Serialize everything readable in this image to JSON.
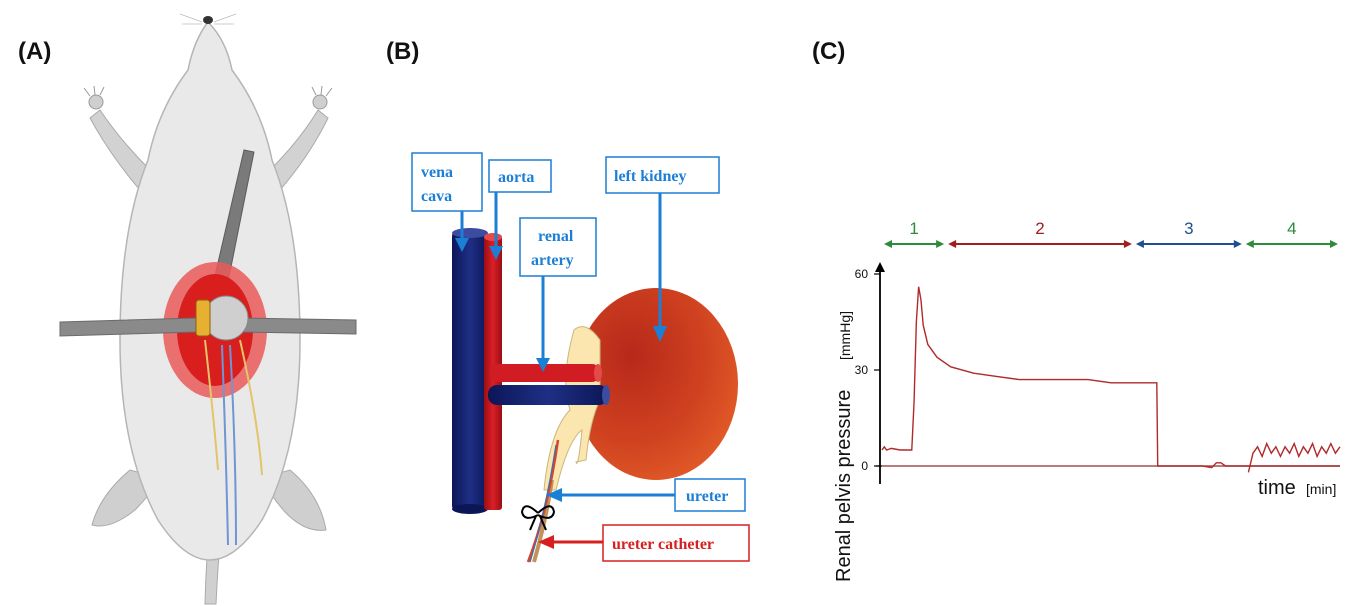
{
  "panels": {
    "a": "(A)",
    "b": "(B)",
    "c": "(C)"
  },
  "diagram_b": {
    "labels": {
      "vena_cava_line1": "vena",
      "vena_cava_line2": "cava",
      "aorta": "aorta",
      "left_kidney": "left kidney",
      "renal_artery_line1": "renal",
      "renal_artery_line2": "artery",
      "ureter": "ureter",
      "ureter_catheter": "ureter catheter"
    },
    "colors": {
      "label_blue": "#1c7fd6",
      "label_red": "#d71f1f",
      "vein": "#12206b",
      "artery": "#c2121a",
      "kidney": "#c53a1a"
    }
  },
  "chart_c": {
    "ylabel": "Renal pelvis pressure",
    "yunit": "[mmHg]",
    "xlabel": "time",
    "xunit": "[min]",
    "yticks": [
      "0",
      "30",
      "60"
    ],
    "phases": [
      {
        "label": "1",
        "color": "#2e8b3a"
      },
      {
        "label": "2",
        "color": "#a01e1e"
      },
      {
        "label": "3",
        "color": "#1f4f91"
      },
      {
        "label": "4",
        "color": "#2e8b3a"
      }
    ]
  },
  "chart_data": {
    "type": "line",
    "title": "",
    "xlabel": "time [min]",
    "ylabel": "Renal pelvis pressure [mmHg]",
    "ylim": [
      0,
      60
    ],
    "yticks": [
      0,
      30,
      60
    ],
    "series": [
      {
        "x": [
          0,
          0.5,
          1,
          2,
          4,
          6.5,
          7,
          7.5,
          8,
          8.5,
          9,
          10,
          12,
          15,
          20,
          25,
          30,
          34,
          36,
          40,
          45,
          50,
          55,
          59,
          60,
          60.2,
          61,
          65,
          70,
          72,
          73,
          74,
          75,
          76,
          77,
          78,
          80,
          85,
          90,
          95,
          100
        ],
        "y": [
          5,
          6,
          5,
          5.5,
          5,
          5,
          20,
          45,
          56,
          52,
          44,
          38,
          34,
          31,
          29,
          28,
          27,
          27,
          27,
          27,
          27,
          26,
          26,
          26,
          26,
          0,
          0,
          0,
          0,
          -0.5,
          1,
          1,
          0,
          0,
          0,
          0,
          0,
          0,
          0,
          0,
          0
        ]
      },
      {
        "x": [
          80,
          81,
          82,
          83,
          84,
          85,
          86,
          87,
          88,
          89,
          90,
          91,
          92,
          93,
          94,
          95,
          96,
          97,
          98,
          99,
          100
        ],
        "y": [
          -2,
          4,
          6,
          3,
          7,
          4,
          6,
          3,
          6,
          4,
          7,
          3,
          6,
          4,
          7,
          3,
          6,
          4,
          7,
          4,
          6
        ]
      }
    ]
  }
}
